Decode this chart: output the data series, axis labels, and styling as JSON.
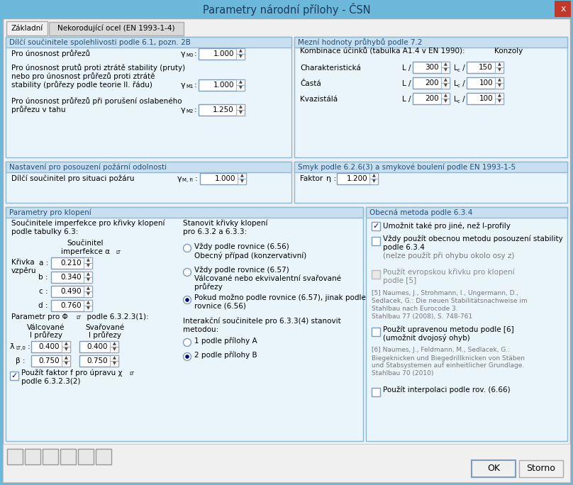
{
  "title": "Parametry národní přílohy - ČSN",
  "tab_active": "Základní",
  "tab_inactive": "Nekorodující ocel (EN 1993-1-4)",
  "sections": {
    "left_top": "Dílčí součinitele spolehlivosti podle 6.1, pozn. 2B",
    "right_top": "Mezní hodnoty průhybů podle 7.2",
    "left_mid": "Nastavení pro posouzení požární odolnosti",
    "right_mid": "Smyk podle 6.2.6(3) a smykové boulení podle EN 1993-1-5",
    "left_bot": "Parametry pro klopení",
    "right_bot": "Obecná metoda podle 6.3.4"
  },
  "colors": {
    "titlebar_bg": "#6BB8DB",
    "titlebar_text": "#1A3A5C",
    "close_btn": "#C0392B",
    "dialog_bg": "#ECE9D8",
    "body_bg": "#F0F0F0",
    "section_bg": "#EAF4FB",
    "section_header_bg": "#C8DFF0",
    "section_border": "#8BBAD4",
    "tab_active_bg": "#F0F0F0",
    "tab_inactive_bg": "#D9D9D9",
    "input_bg": "#FFFFFF",
    "input_border": "#7F9DB9",
    "spinner_bg": "#F5F5F5",
    "text_main": "#000000",
    "text_section_title": "#1F4E79",
    "text_gray": "#888888",
    "text_blue": "#000080",
    "checkbox_border": "#7F9DB9",
    "bottom_bar": "#ECE9D8",
    "button_bg": "#F0F0F0",
    "button_border": "#7F9DB9"
  }
}
